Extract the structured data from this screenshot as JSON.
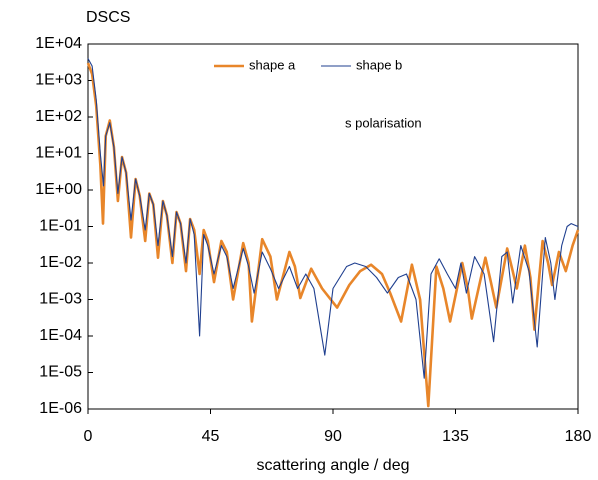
{
  "chart_data": {
    "type": "line",
    "title": "DSCS",
    "x_label": "scattering angle / deg",
    "annotation": "s polarisation",
    "log_y": true,
    "xlim": [
      0,
      180
    ],
    "xticks": [
      0,
      45,
      90,
      135,
      180
    ],
    "ylim": [
      1e-06,
      10000
    ],
    "yticks": [
      {
        "value": 10000,
        "label": "1E+04"
      },
      {
        "value": 1000,
        "label": "1E+03"
      },
      {
        "value": 100,
        "label": "1E+02"
      },
      {
        "value": 10,
        "label": "1E+01"
      },
      {
        "value": 1,
        "label": "1E+00"
      },
      {
        "value": 0.1,
        "label": "1E-01"
      },
      {
        "value": 0.01,
        "label": "1E-02"
      },
      {
        "value": 0.001,
        "label": "1E-03"
      },
      {
        "value": 0.0001,
        "label": "1E-04"
      },
      {
        "value": 1e-05,
        "label": "1E-05"
      },
      {
        "value": 1e-06,
        "label": "1E-06"
      }
    ],
    "series": [
      {
        "name": "shape a",
        "color": "#e8862a",
        "x": [
          0,
          1.5,
          3,
          4.5,
          5.5,
          6.5,
          8,
          9.5,
          11,
          12.5,
          14,
          15.8,
          17.5,
          19,
          21,
          22.5,
          24,
          25.7,
          27.5,
          29,
          31,
          32.5,
          34,
          36,
          37.5,
          39,
          41,
          42.5,
          44,
          46.3,
          49,
          51,
          53.3,
          57,
          59,
          60.2,
          64,
          67,
          69.4,
          74,
          76,
          78,
          82,
          86,
          91.5,
          96,
          100,
          104,
          108,
          111,
          115,
          119,
          122,
          125,
          128,
          130.5,
          133,
          137.5,
          139.5,
          141,
          146,
          148,
          150,
          154,
          156,
          157.5,
          160.5,
          162.5,
          164,
          167,
          169,
          170.5,
          173,
          175.5,
          178,
          180
        ],
        "values": [
          3000,
          1500,
          200,
          5,
          0.12,
          30,
          80,
          15,
          0.5,
          8,
          3,
          0.05,
          2,
          0.7,
          0.04,
          0.8,
          0.4,
          0.014,
          0.5,
          0.2,
          0.01,
          0.25,
          0.12,
          0.006,
          0.16,
          0.08,
          0.005,
          0.08,
          0.04,
          0.003,
          0.04,
          0.02,
          0.001,
          0.035,
          0.01,
          0.00025,
          0.045,
          0.015,
          0.001,
          0.02,
          0.008,
          0.0011,
          0.007,
          0.002,
          0.0006,
          0.0025,
          0.006,
          0.009,
          0.005,
          0.0015,
          0.00025,
          0.009,
          0.001,
          1.2e-06,
          0.008,
          0.002,
          0.00025,
          0.01,
          0.002,
          0.0003,
          0.014,
          0.003,
          0.0006,
          0.025,
          0.006,
          0.002,
          0.03,
          0.004,
          0.00015,
          0.04,
          0.01,
          0.0025,
          0.02,
          0.006,
          0.03,
          0.08
        ]
      },
      {
        "name": "shape b",
        "color": "#1f3f8f",
        "x": [
          0,
          1.5,
          3,
          4.5,
          5.7,
          6.5,
          8,
          9.5,
          11,
          12.5,
          14,
          15.8,
          17.5,
          19,
          21,
          22.5,
          24,
          25.7,
          27.5,
          29,
          31,
          32.5,
          34,
          36,
          37.5,
          39,
          41,
          42.5,
          44,
          46.3,
          49,
          51,
          53.3,
          57,
          59,
          61,
          64,
          67,
          70,
          74,
          77,
          80,
          83,
          87,
          90,
          95,
          98,
          102,
          106,
          110,
          114,
          117,
          120.5,
          123.5,
          126,
          129,
          132,
          135,
          137,
          139,
          142,
          145.5,
          149,
          152,
          154,
          156,
          159,
          162,
          165,
          168,
          170,
          171.5,
          174,
          176,
          177.5,
          180
        ],
        "values": [
          4000,
          2500,
          300,
          10,
          1.3,
          30,
          70,
          15,
          0.8,
          8,
          3,
          0.15,
          2,
          0.7,
          0.08,
          0.8,
          0.4,
          0.03,
          0.5,
          0.2,
          0.015,
          0.25,
          0.12,
          0.01,
          0.16,
          0.06,
          0.0001,
          0.06,
          0.03,
          0.005,
          0.03,
          0.015,
          0.002,
          0.025,
          0.008,
          0.0015,
          0.02,
          0.007,
          0.002,
          0.008,
          0.002,
          0.005,
          0.002,
          3e-05,
          0.002,
          0.008,
          0.01,
          0.008,
          0.004,
          0.0015,
          0.004,
          0.005,
          0.001,
          7e-06,
          0.005,
          0.013,
          0.005,
          0.002,
          0.01,
          0.0015,
          0.015,
          0.005,
          7e-05,
          0.015,
          0.02,
          0.0008,
          0.03,
          0.006,
          5e-05,
          0.05,
          0.01,
          0.001,
          0.03,
          0.1,
          0.12,
          0.1
        ]
      }
    ]
  }
}
